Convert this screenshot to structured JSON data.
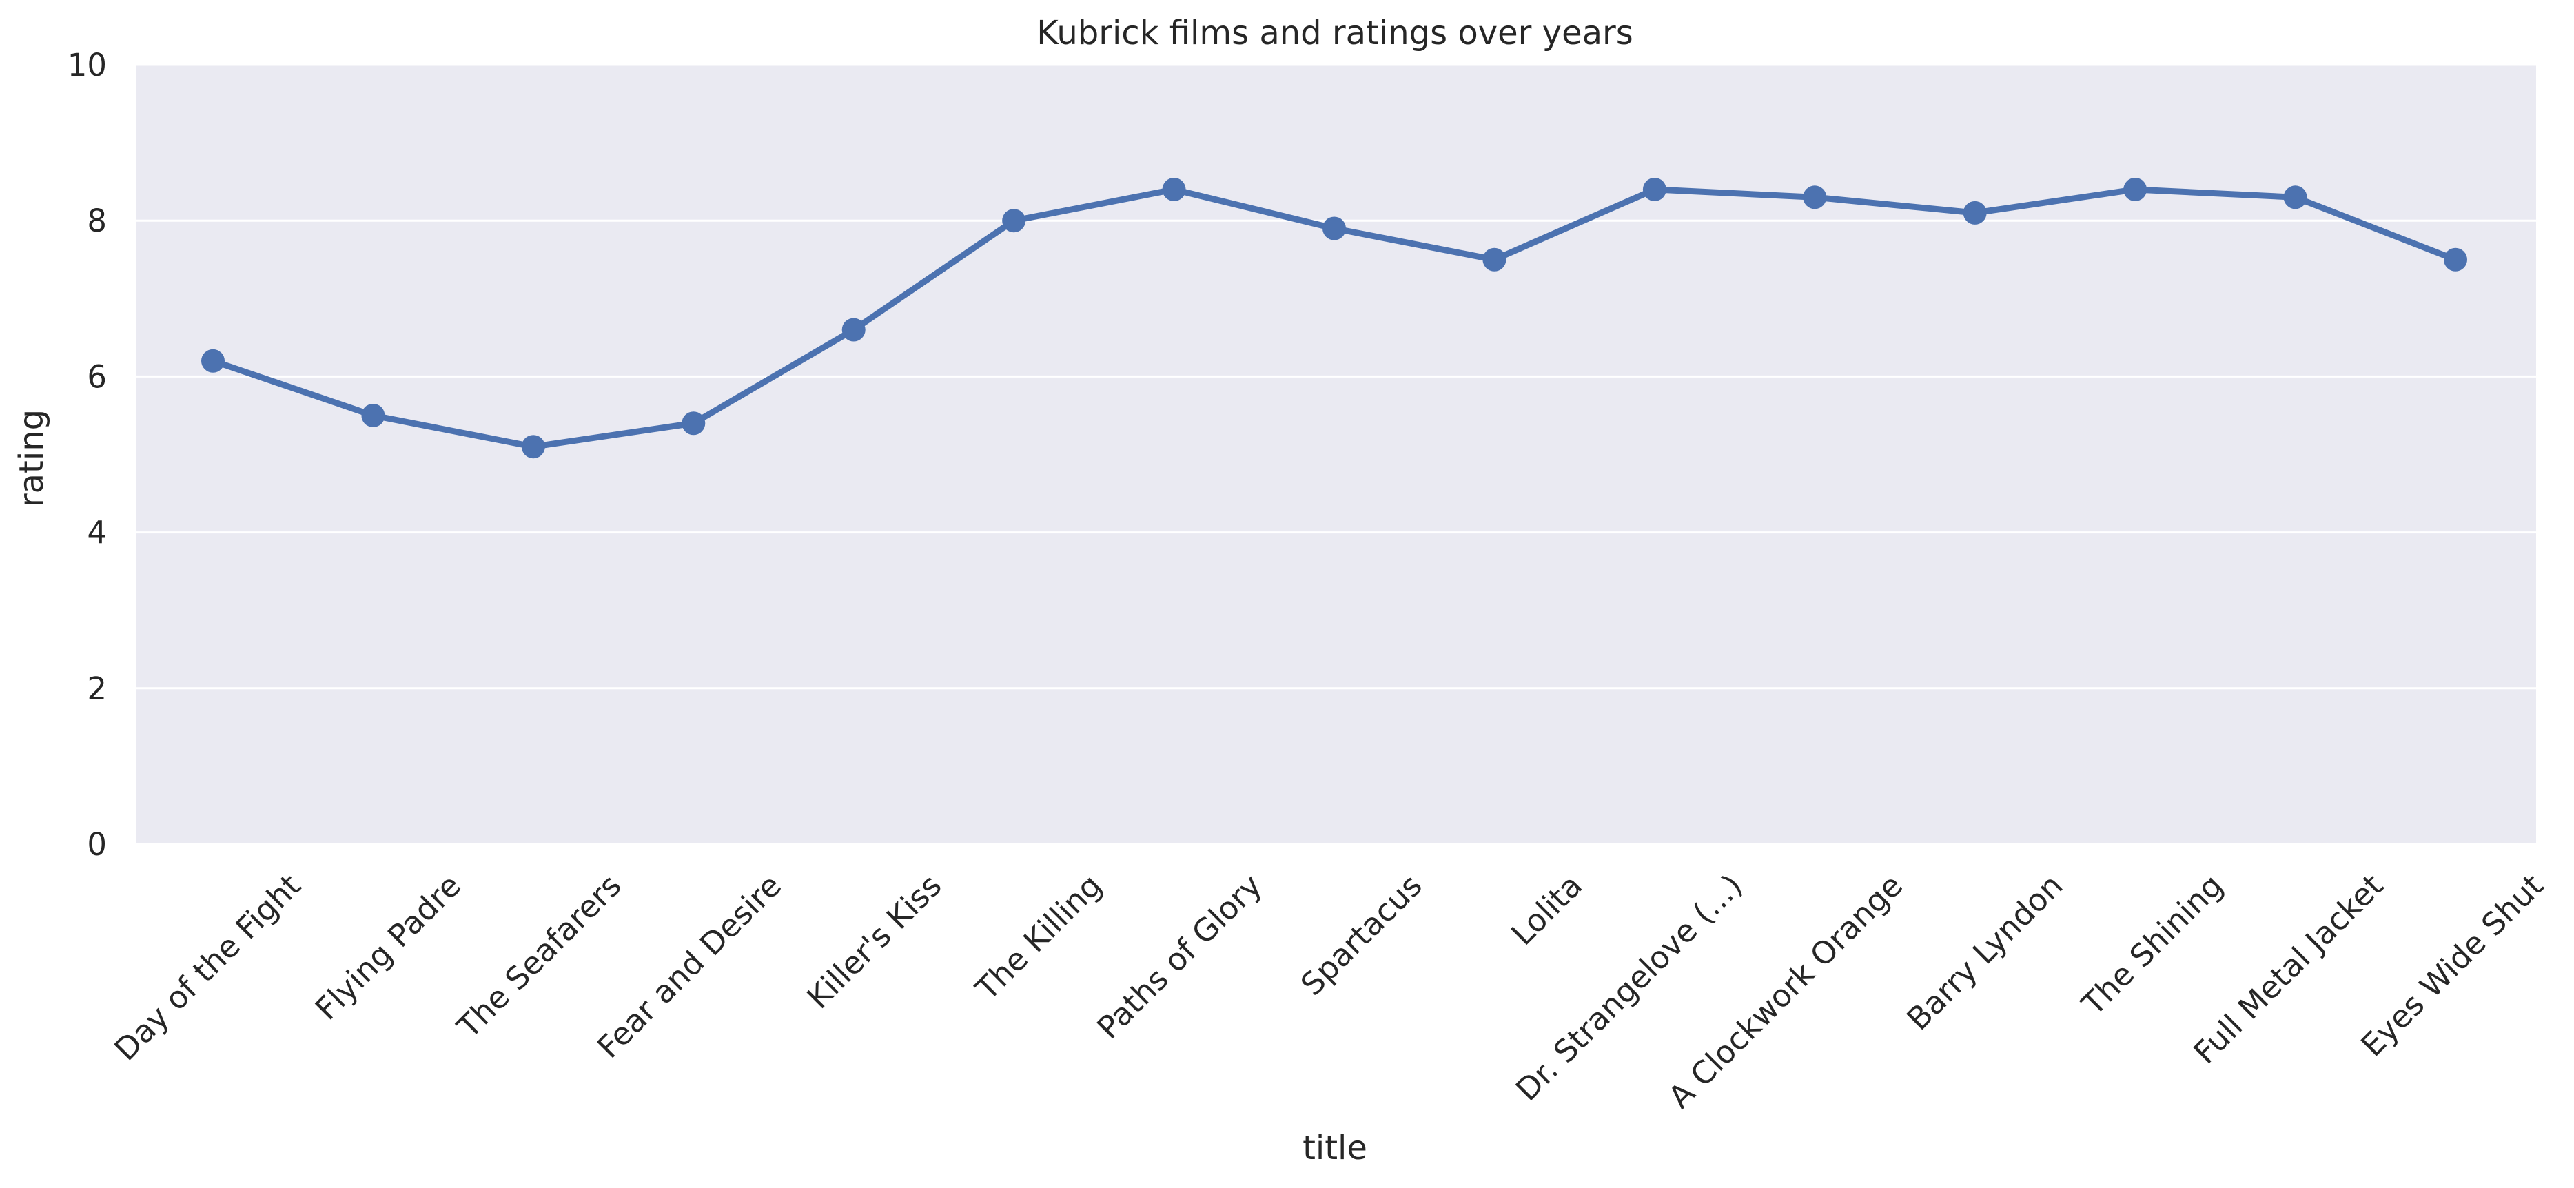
{
  "chart_data": {
    "type": "line",
    "title": "Kubrick films and ratings over years",
    "xlabel": "title",
    "ylabel": "rating",
    "ylim": [
      0,
      10
    ],
    "yticks": [
      0,
      2,
      4,
      6,
      8,
      10
    ],
    "grid": true,
    "categories": [
      "Day of the Fight",
      "Flying Padre",
      "The Seafarers",
      "Fear and Desire",
      "Killer's Kiss",
      "The Killing",
      "Paths of Glory",
      "Spartacus",
      "Lolita",
      "Dr. Strangelove (...)",
      "A Clockwork Orange",
      "Barry Lyndon",
      "The Shining",
      "Full Metal Jacket",
      "Eyes Wide Shut"
    ],
    "series": [
      {
        "values": [
          6.2,
          5.5,
          5.1,
          5.4,
          6.6,
          8.0,
          8.4,
          7.9,
          7.5,
          8.4,
          8.3,
          8.1,
          8.4,
          8.3,
          7.5
        ],
        "color": "#4c72b0"
      }
    ],
    "colors": {
      "plot_background": "#eaeaf2",
      "grid": "#ffffff",
      "line": "#4c72b0"
    }
  }
}
